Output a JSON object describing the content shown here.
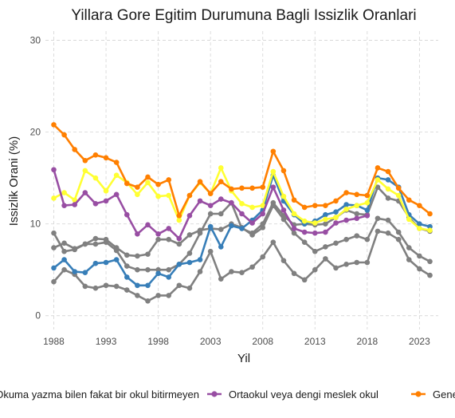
{
  "chart_data": {
    "type": "line",
    "title": "Yillara Gore Egitim Durumuna Bagli Issizlik Oranlari",
    "xlabel": "Yil",
    "ylabel": "Issizlik Orani (%)",
    "xlim": [
      1987.2,
      2024.8
    ],
    "ylim": [
      -1.5,
      31
    ],
    "x_ticks": [
      1988,
      1993,
      1998,
      2003,
      2008,
      2013,
      2018,
      2023
    ],
    "y_ticks": [
      0,
      10,
      20,
      30
    ],
    "grid": true,
    "legend_position": "bottom",
    "legend": [
      {
        "label": "Okuma yazma bilen fakat bir okul bitirmeyen",
        "color": "#808080",
        "clip_left": true
      },
      {
        "label": "Ortaokul veya dengi meslek okul",
        "color": "#984ea3"
      },
      {
        "label": "Genel lise",
        "color": "#ff7f00"
      }
    ],
    "x": [
      1988,
      1989,
      1990,
      1991,
      1992,
      1993,
      1994,
      1995,
      1996,
      1997,
      1998,
      1999,
      2000,
      2001,
      2002,
      2003,
      2004,
      2005,
      2006,
      2007,
      2008,
      2009,
      2010,
      2011,
      2012,
      2013,
      2014,
      2015,
      2016,
      2017,
      2018,
      2019,
      2020,
      2021,
      2022,
      2023,
      2024
    ],
    "series": [
      {
        "color": "#808080",
        "values": [
          3.7,
          5.0,
          4.5,
          3.2,
          3.0,
          3.3,
          3.2,
          2.8,
          2.2,
          1.6,
          2.2,
          2.2,
          3.3,
          3.0,
          4.8,
          7.0,
          4.0,
          4.8,
          4.7,
          5.3,
          6.4,
          8.0,
          6.0,
          4.6,
          3.9,
          5.0,
          6.2,
          5.2,
          5.6,
          5.8,
          5.8,
          9.2,
          9.0,
          8.3,
          6.1,
          5.1,
          4.4
        ]
      },
      {
        "color": "#808080",
        "values": [
          7.4,
          7.9,
          7.3,
          7.8,
          8.4,
          8.3,
          7.4,
          6.6,
          6.5,
          6.7,
          8.3,
          8.3,
          7.8,
          8.8,
          9.3,
          9.5,
          9.4,
          10.0,
          9.6,
          8.8,
          9.6,
          12.0,
          10.5,
          9.0,
          8.0,
          7.0,
          7.5,
          7.9,
          8.3,
          8.7,
          8.3,
          10.6,
          10.4,
          9.1,
          7.4,
          6.5,
          5.9
        ]
      },
      {
        "color": "#808080",
        "values": [
          9.0,
          7.0,
          7.2,
          7.8,
          7.8,
          8.0,
          7.1,
          5.4,
          5.0,
          5.0,
          5.0,
          5.0,
          5.6,
          6.8,
          9.0,
          11.1,
          11.1,
          12.3,
          9.5,
          9.0,
          10.0,
          12.3,
          10.9,
          9.9,
          10.0,
          9.9,
          10.0,
          10.7,
          11.5,
          11.1,
          11.0,
          14.0,
          12.8,
          12.5,
          10.7,
          9.5,
          9.2
        ]
      },
      {
        "color": "#377eb8",
        "values": [
          5.2,
          6.1,
          4.8,
          4.7,
          5.7,
          5.8,
          6.1,
          4.2,
          3.3,
          3.3,
          4.6,
          4.2,
          5.6,
          5.8,
          6.1,
          9.7,
          7.5,
          9.8,
          9.5,
          10.4,
          11.5,
          15.3,
          12.5,
          11.0,
          10.0,
          10.3,
          11.0,
          11.3,
          12.1,
          12.0,
          11.5,
          15.0,
          14.8,
          14.0,
          11.0,
          10.0,
          9.7
        ]
      },
      {
        "color": "#ffff33",
        "values": [
          12.8,
          13.4,
          12.6,
          15.8,
          15.0,
          13.6,
          15.3,
          14.5,
          13.2,
          14.5,
          13.0,
          13.1,
          10.4,
          13.1,
          14.5,
          13.3,
          16.1,
          13.6,
          12.2,
          11.8,
          12.0,
          15.7,
          13.0,
          11.1,
          10.3,
          10.1,
          10.5,
          10.7,
          11.6,
          12.0,
          12.3,
          14.8,
          13.8,
          13.1,
          10.5,
          9.5,
          9.3
        ]
      },
      {
        "color": "#984ea3",
        "values": [
          15.9,
          12.0,
          12.1,
          13.4,
          12.2,
          12.5,
          13.2,
          11.0,
          8.9,
          9.9,
          8.9,
          9.5,
          8.4,
          10.9,
          12.5,
          12.0,
          12.7,
          12.3,
          11.1,
          10.1,
          11.1,
          14.0,
          11.5,
          9.5,
          9.1,
          9.0,
          9.1,
          10.1,
          10.4,
          10.6,
          10.9,
          null,
          null,
          null,
          null,
          null,
          null
        ]
      },
      {
        "color": "#ff7f00",
        "values": [
          20.8,
          19.7,
          18.1,
          16.9,
          17.5,
          17.2,
          16.7,
          14.4,
          14.0,
          15.1,
          14.3,
          14.8,
          10.9,
          13.1,
          14.6,
          13.3,
          14.6,
          13.8,
          13.9,
          13.9,
          14.0,
          17.9,
          15.8,
          12.6,
          11.8,
          12.0,
          12.0,
          12.5,
          13.4,
          13.2,
          13.1,
          16.1,
          15.7,
          13.9,
          12.6,
          12.0,
          11.1
        ]
      }
    ]
  }
}
